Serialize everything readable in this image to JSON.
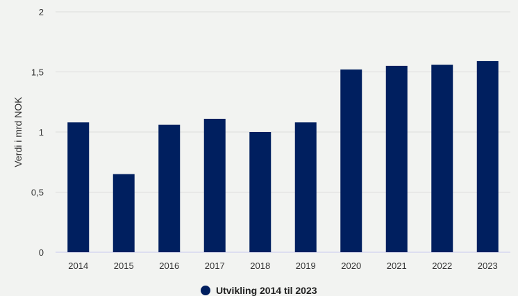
{
  "chart_data": {
    "type": "bar",
    "categories": [
      "2014",
      "2015",
      "2016",
      "2017",
      "2018",
      "2019",
      "2020",
      "2021",
      "2022",
      "2023"
    ],
    "series": [
      {
        "name": "Utvikling 2014 til 2023",
        "values": [
          1.08,
          0.65,
          1.06,
          1.11,
          1.0,
          1.08,
          1.52,
          1.55,
          1.56,
          1.59
        ],
        "color": "#001f5f"
      }
    ],
    "ylabel": "Verdi i mrd NOK",
    "yticks": [
      0,
      0.5,
      1,
      1.5,
      2
    ],
    "ytick_labels": [
      "0",
      "0,5",
      "1",
      "1,5",
      "2"
    ],
    "ylim": [
      0,
      2
    ],
    "grid": true,
    "legend_position": "bottom",
    "colors": {
      "bar": "#001f5f",
      "grid": "#dcdcdc",
      "baseline": "#c8c8ee"
    }
  }
}
